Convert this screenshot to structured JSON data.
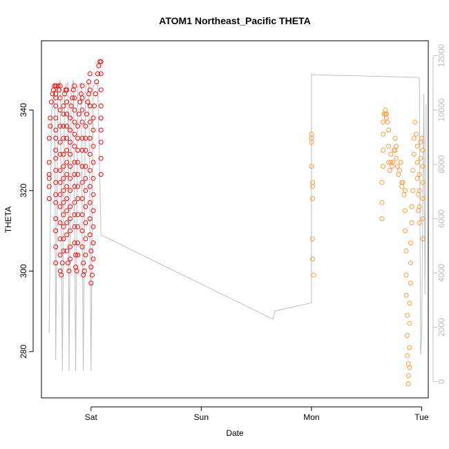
{
  "chart_data": {
    "type": "scatter",
    "title": "ATOM1 Northeast_Pacific THETA",
    "xlabel": "Date",
    "ylabel": "THETA",
    "x_ticks": [
      {
        "label": "Sat",
        "value": 1.0
      },
      {
        "label": "Sun",
        "value": 2.0
      },
      {
        "label": "Mon",
        "value": 3.0
      },
      {
        "label": "Tue",
        "value": 4.0
      }
    ],
    "xlim": [
      0.55,
      4.06
    ],
    "ylim": [
      268.5,
      357.2
    ],
    "y_ticks": [
      280,
      300,
      320,
      340
    ],
    "y2_ticks": [
      0,
      2000,
      4000,
      6000,
      8000,
      10000,
      12000
    ],
    "y2lim": [
      -600,
      12550
    ],
    "grid": false,
    "series": [
      {
        "color": "#ff0000",
        "marker": "open-circle",
        "points": [
          [
            0.62,
            318
          ],
          [
            0.62,
            321
          ],
          [
            0.62,
            323
          ],
          [
            0.62,
            324
          ],
          [
            0.62,
            327
          ],
          [
            0.62,
            333
          ],
          [
            0.63,
            336
          ],
          [
            0.63,
            338
          ],
          [
            0.64,
            342
          ],
          [
            0.65,
            344
          ],
          [
            0.66,
            345
          ],
          [
            0.67,
            346
          ],
          [
            0.68,
            346
          ],
          [
            0.68,
            344
          ],
          [
            0.68,
            343
          ],
          [
            0.68,
            341
          ],
          [
            0.68,
            338
          ],
          [
            0.68,
            335
          ],
          [
            0.68,
            333
          ],
          [
            0.68,
            330
          ],
          [
            0.68,
            328
          ],
          [
            0.68,
            325
          ],
          [
            0.68,
            322
          ],
          [
            0.68,
            319
          ],
          [
            0.68,
            317
          ],
          [
            0.68,
            313
          ],
          [
            0.68,
            310
          ],
          [
            0.68,
            306
          ],
          [
            0.68,
            302
          ],
          [
            0.7,
            346
          ],
          [
            0.71,
            345
          ],
          [
            0.72,
            346
          ],
          [
            0.72,
            343
          ],
          [
            0.72,
            340
          ],
          [
            0.72,
            336
          ],
          [
            0.72,
            332
          ],
          [
            0.72,
            329
          ],
          [
            0.72,
            325
          ],
          [
            0.72,
            322
          ],
          [
            0.72,
            319
          ],
          [
            0.72,
            316
          ],
          [
            0.72,
            312
          ],
          [
            0.72,
            308
          ],
          [
            0.72,
            304
          ],
          [
            0.72,
            300
          ],
          [
            0.73,
            299
          ],
          [
            0.74,
            302
          ],
          [
            0.75,
            305
          ],
          [
            0.75,
            308
          ],
          [
            0.75,
            311
          ],
          [
            0.75,
            314
          ],
          [
            0.75,
            317
          ],
          [
            0.75,
            320
          ],
          [
            0.75,
            323
          ],
          [
            0.75,
            326
          ],
          [
            0.75,
            329
          ],
          [
            0.75,
            333
          ],
          [
            0.75,
            336
          ],
          [
            0.75,
            339
          ],
          [
            0.75,
            341
          ],
          [
            0.76,
            344
          ],
          [
            0.77,
            345
          ],
          [
            0.78,
            345
          ],
          [
            0.78,
            342
          ],
          [
            0.78,
            339
          ],
          [
            0.78,
            336
          ],
          [
            0.78,
            333
          ],
          [
            0.78,
            330
          ],
          [
            0.78,
            327
          ],
          [
            0.78,
            324
          ],
          [
            0.78,
            321
          ],
          [
            0.78,
            318
          ],
          [
            0.78,
            315
          ],
          [
            0.78,
            312
          ],
          [
            0.78,
            309
          ],
          [
            0.78,
            305
          ],
          [
            0.79,
            302
          ],
          [
            0.8,
            300
          ],
          [
            0.81,
            303
          ],
          [
            0.81,
            306
          ],
          [
            0.81,
            310
          ],
          [
            0.81,
            313
          ],
          [
            0.81,
            316
          ],
          [
            0.81,
            320
          ],
          [
            0.81,
            323
          ],
          [
            0.81,
            326
          ],
          [
            0.81,
            329
          ],
          [
            0.81,
            332
          ],
          [
            0.81,
            335
          ],
          [
            0.81,
            338
          ],
          [
            0.82,
            341
          ],
          [
            0.83,
            343
          ],
          [
            0.84,
            345
          ],
          [
            0.85,
            346
          ],
          [
            0.85,
            343
          ],
          [
            0.85,
            340
          ],
          [
            0.85,
            337
          ],
          [
            0.85,
            334
          ],
          [
            0.85,
            331
          ],
          [
            0.85,
            327
          ],
          [
            0.85,
            324
          ],
          [
            0.85,
            321
          ],
          [
            0.85,
            317
          ],
          [
            0.85,
            314
          ],
          [
            0.85,
            311
          ],
          [
            0.85,
            307
          ],
          [
            0.86,
            304
          ],
          [
            0.86,
            301
          ],
          [
            0.87,
            300
          ],
          [
            0.88,
            304
          ],
          [
            0.88,
            307
          ],
          [
            0.88,
            311
          ],
          [
            0.88,
            314
          ],
          [
            0.88,
            318
          ],
          [
            0.88,
            321
          ],
          [
            0.88,
            324
          ],
          [
            0.88,
            327
          ],
          [
            0.88,
            330
          ],
          [
            0.88,
            333
          ],
          [
            0.88,
            336
          ],
          [
            0.89,
            339
          ],
          [
            0.9,
            342
          ],
          [
            0.91,
            344
          ],
          [
            0.92,
            346
          ],
          [
            0.92,
            343
          ],
          [
            0.92,
            340
          ],
          [
            0.92,
            337
          ],
          [
            0.92,
            333
          ],
          [
            0.92,
            330
          ],
          [
            0.92,
            326
          ],
          [
            0.92,
            322
          ],
          [
            0.92,
            318
          ],
          [
            0.92,
            314
          ],
          [
            0.92,
            310
          ],
          [
            0.92,
            306
          ],
          [
            0.93,
            302
          ],
          [
            0.93,
            299
          ],
          [
            0.94,
            300
          ],
          [
            0.95,
            304
          ],
          [
            0.95,
            308
          ],
          [
            0.95,
            312
          ],
          [
            0.95,
            316
          ],
          [
            0.95,
            320
          ],
          [
            0.95,
            323
          ],
          [
            0.95,
            326
          ],
          [
            0.95,
            330
          ],
          [
            0.95,
            333
          ],
          [
            0.95,
            336
          ],
          [
            0.96,
            339
          ],
          [
            0.97,
            342
          ],
          [
            0.98,
            344
          ],
          [
            0.98,
            347
          ],
          [
            0.99,
            349
          ],
          [
            0.99,
            345
          ],
          [
            0.99,
            341
          ],
          [
            0.99,
            337
          ],
          [
            0.99,
            333
          ],
          [
            0.99,
            329
          ],
          [
            0.99,
            325
          ],
          [
            0.99,
            321
          ],
          [
            0.99,
            317
          ],
          [
            0.99,
            313
          ],
          [
            0.99,
            309
          ],
          [
            1.0,
            305
          ],
          [
            1.0,
            301
          ],
          [
            1.0,
            297
          ],
          [
            1.01,
            299
          ],
          [
            1.02,
            303
          ],
          [
            1.02,
            307
          ],
          [
            1.02,
            311
          ],
          [
            1.02,
            315
          ],
          [
            1.02,
            319
          ],
          [
            1.02,
            323
          ],
          [
            1.02,
            327
          ],
          [
            1.02,
            331
          ],
          [
            1.02,
            335
          ],
          [
            1.02,
            338
          ],
          [
            1.03,
            341
          ],
          [
            1.04,
            344
          ],
          [
            1.05,
            347
          ],
          [
            1.06,
            349
          ],
          [
            1.07,
            351
          ],
          [
            1.08,
            352
          ],
          [
            1.09,
            352
          ],
          [
            1.09,
            349
          ],
          [
            1.09,
            345
          ],
          [
            1.09,
            341
          ],
          [
            1.09,
            338
          ],
          [
            1.09,
            335
          ],
          [
            1.09,
            332
          ],
          [
            1.09,
            328
          ],
          [
            1.09,
            324
          ]
        ]
      },
      {
        "color": "#ff9933",
        "marker": "open-circle",
        "points": [
          [
            3.0,
            334
          ],
          [
            3.0,
            333
          ],
          [
            3.0,
            332
          ],
          [
            3.0,
            326
          ],
          [
            3.01,
            322
          ],
          [
            3.01,
            321
          ],
          [
            3.01,
            318
          ],
          [
            3.01,
            308
          ],
          [
            3.01,
            303
          ],
          [
            3.02,
            299
          ],
          [
            3.64,
            313
          ],
          [
            3.64,
            317
          ],
          [
            3.64,
            322
          ],
          [
            3.65,
            326
          ],
          [
            3.65,
            330
          ],
          [
            3.65,
            334
          ],
          [
            3.65,
            337
          ],
          [
            3.66,
            339
          ],
          [
            3.67,
            339
          ],
          [
            3.67,
            340
          ],
          [
            3.68,
            339
          ],
          [
            3.68,
            338
          ],
          [
            3.69,
            337
          ],
          [
            3.7,
            335
          ],
          [
            3.7,
            331
          ],
          [
            3.7,
            327
          ],
          [
            3.71,
            325
          ],
          [
            3.72,
            327
          ],
          [
            3.72,
            329
          ],
          [
            3.73,
            326
          ],
          [
            3.74,
            327
          ],
          [
            3.75,
            330
          ],
          [
            3.76,
            333
          ],
          [
            3.76,
            330
          ],
          [
            3.77,
            331
          ],
          [
            3.77,
            328
          ],
          [
            3.78,
            326
          ],
          [
            3.79,
            324
          ],
          [
            3.8,
            325
          ],
          [
            3.81,
            327
          ],
          [
            3.82,
            322
          ],
          [
            3.82,
            321
          ],
          [
            3.83,
            322
          ],
          [
            3.84,
            319
          ],
          [
            3.85,
            320
          ],
          [
            3.85,
            315
          ],
          [
            3.85,
            310
          ],
          [
            3.86,
            305
          ],
          [
            3.86,
            299
          ],
          [
            3.86,
            294
          ],
          [
            3.87,
            289
          ],
          [
            3.87,
            284
          ],
          [
            3.87,
            279
          ],
          [
            3.88,
            277
          ],
          [
            3.88,
            274
          ],
          [
            3.88,
            272
          ],
          [
            3.89,
            276
          ],
          [
            3.89,
            281
          ],
          [
            3.89,
            287
          ],
          [
            3.89,
            292
          ],
          [
            3.9,
            297
          ],
          [
            3.9,
            302
          ],
          [
            3.9,
            307
          ],
          [
            3.91,
            312
          ],
          [
            3.91,
            316
          ],
          [
            3.92,
            320
          ],
          [
            3.92,
            325
          ],
          [
            3.93,
            329
          ],
          [
            3.93,
            333
          ],
          [
            3.94,
            337
          ],
          [
            3.95,
            334
          ],
          [
            3.96,
            331
          ],
          [
            3.96,
            327
          ],
          [
            3.96,
            323
          ],
          [
            3.97,
            319
          ],
          [
            3.97,
            315
          ],
          [
            3.98,
            312
          ],
          [
            3.98,
            316
          ],
          [
            3.98,
            320
          ],
          [
            3.98,
            324
          ],
          [
            3.99,
            328
          ],
          [
            3.99,
            332
          ],
          [
            4.0,
            333
          ],
          [
            4.01,
            330
          ],
          [
            4.01,
            326
          ],
          [
            4.01,
            322
          ],
          [
            4.01,
            318
          ],
          [
            4.01,
            313
          ],
          [
            4.01,
            308
          ]
        ]
      }
    ],
    "line_series": {
      "color": "#bdbdbd",
      "axis": "y2",
      "points": [
        [
          0.62,
          1800
        ],
        [
          0.64,
          9800
        ],
        [
          0.67,
          11000
        ],
        [
          0.68,
          800
        ],
        [
          0.7,
          10800
        ],
        [
          0.72,
          11100
        ],
        [
          0.74,
          400
        ],
        [
          0.76,
          10800
        ],
        [
          0.79,
          11000
        ],
        [
          0.8,
          400
        ],
        [
          0.82,
          10800
        ],
        [
          0.84,
          11100
        ],
        [
          0.86,
          400
        ],
        [
          0.88,
          10900
        ],
        [
          0.91,
          11000
        ],
        [
          0.93,
          400
        ],
        [
          0.95,
          10900
        ],
        [
          0.98,
          11000
        ],
        [
          1.0,
          400
        ],
        [
          1.02,
          10900
        ],
        [
          1.06,
          11000
        ],
        [
          1.09,
          5500
        ],
        [
          1.09,
          5400
        ],
        [
          2.65,
          2300
        ],
        [
          2.67,
          2600
        ],
        [
          3.0,
          2900
        ],
        [
          3.0,
          11300
        ],
        [
          3.98,
          11200
        ],
        [
          3.99,
          1000
        ],
        [
          4.0,
          1600
        ],
        [
          4.02,
          10600
        ],
        [
          4.03,
          3200
        ],
        [
          4.04,
          9100
        ],
        [
          4.04,
          10200
        ]
      ]
    }
  }
}
